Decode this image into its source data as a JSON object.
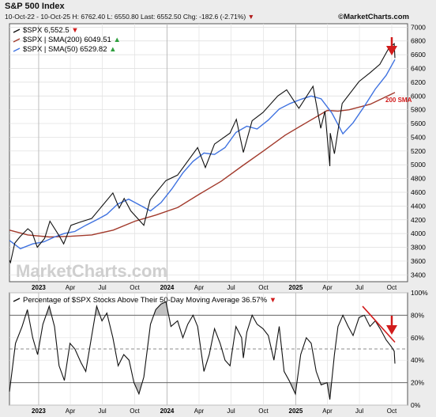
{
  "header": {
    "title": "S&P 500 Index",
    "info": "10-Oct-22 - 10-Oct-25 H: 6762.40 L: 6550.80 Last: 6552.50 Chg: -182.6 (-2.71%)",
    "down_marker": "▼",
    "brand": "©MarketCharts.com"
  },
  "watermark": "MarketCharts.com",
  "colors": {
    "price": "#111111",
    "sma200": "#a23a2c",
    "sma50": "#3f72e0",
    "down_red": "#d11b1b",
    "up_green": "#2e9e3e",
    "breadth_fill": "#a8a8a8"
  },
  "chart_data": [
    {
      "type": "line",
      "legend": [
        {
          "text": "$SPX 6,552.5",
          "marker": "▼",
          "marker_color": "#d11b1b"
        },
        {
          "text": "$SPX | SMA(200) 6049.51",
          "marker": "▲",
          "marker_color": "#2e9e3e"
        },
        {
          "text": "$SPX | SMA(50) 6529.82",
          "marker": "▲",
          "marker_color": "#2e9e3e"
        }
      ],
      "annotation": "200 SMA",
      "x_ticks": [
        "2023",
        "Apr",
        "Jul",
        "Oct",
        "2024",
        "Apr",
        "Jul",
        "Oct",
        "2025",
        "Apr",
        "Jul",
        "Oct"
      ],
      "y_ticks": [
        3400,
        3600,
        3800,
        4000,
        4200,
        4400,
        4600,
        4800,
        5000,
        5200,
        5400,
        5600,
        5800,
        6000,
        6200,
        6400,
        6600,
        6800,
        7000
      ],
      "ylim": [
        3300,
        7050
      ],
      "grid": true,
      "legend_position": "top-left",
      "series": [
        {
          "name": "$SPX",
          "x": [
            "2022-10-10",
            "2022-10-13",
            "2022-10-25",
            "2022-11-10",
            "2022-12-01",
            "2022-12-13",
            "2022-12-28",
            "2023-01-18",
            "2023-02-02",
            "2023-02-28",
            "2023-03-13",
            "2023-04-03",
            "2023-05-01",
            "2023-06-01",
            "2023-07-31",
            "2023-08-18",
            "2023-09-01",
            "2023-09-20",
            "2023-10-27",
            "2023-11-14",
            "2023-12-29",
            "2024-01-31",
            "2024-03-28",
            "2024-04-19",
            "2024-05-15",
            "2024-06-28",
            "2024-07-16",
            "2024-08-05",
            "2024-08-30",
            "2024-09-30",
            "2024-11-11",
            "2024-12-06",
            "2025-01-10",
            "2025-02-19",
            "2025-03-13",
            "2025-03-25",
            "2025-04-08",
            "2025-04-09",
            "2025-04-21",
            "2025-05-13",
            "2025-06-30",
            "2025-08-01",
            "2025-08-28",
            "2025-09-22",
            "2025-10-08",
            "2025-10-10"
          ],
          "y": [
            3612,
            3580,
            3860,
            3960,
            4070,
            4020,
            3800,
            3930,
            4180,
            3970,
            3850,
            4120,
            4170,
            4220,
            4590,
            4370,
            4510,
            4330,
            4120,
            4490,
            4770,
            4850,
            5250,
            4960,
            5300,
            5460,
            5660,
            5180,
            5640,
            5760,
            6000,
            6090,
            5820,
            6140,
            5530,
            5780,
            4980,
            5460,
            5160,
            5890,
            6210,
            6340,
            6460,
            6690,
            6760,
            6552
          ]
        },
        {
          "name": "SMA(200)",
          "x": [
            "2022-10-10",
            "2022-12-01",
            "2023-02-01",
            "2023-04-03",
            "2023-06-01",
            "2023-08-01",
            "2023-10-02",
            "2023-12-01",
            "2024-02-01",
            "2024-04-01",
            "2024-06-03",
            "2024-08-01",
            "2024-10-01",
            "2024-12-02",
            "2025-02-03",
            "2025-04-01",
            "2025-05-01",
            "2025-06-02",
            "2025-08-01",
            "2025-10-10"
          ],
          "y": [
            4050,
            3980,
            3950,
            3960,
            3980,
            4050,
            4180,
            4270,
            4380,
            4570,
            4760,
            4980,
            5200,
            5430,
            5620,
            5790,
            5780,
            5800,
            5880,
            6050
          ]
        },
        {
          "name": "SMA(50)",
          "x": [
            "2022-10-10",
            "2022-11-10",
            "2022-12-15",
            "2023-01-16",
            "2023-02-15",
            "2023-03-15",
            "2023-04-14",
            "2023-05-15",
            "2023-06-15",
            "2023-07-14",
            "2023-08-14",
            "2023-09-14",
            "2023-10-13",
            "2023-11-15",
            "2023-12-15",
            "2024-01-15",
            "2024-02-15",
            "2024-03-15",
            "2024-04-15",
            "2024-05-15",
            "2024-06-14",
            "2024-07-15",
            "2024-08-15",
            "2024-09-13",
            "2024-10-15",
            "2024-11-15",
            "2024-12-16",
            "2025-01-15",
            "2025-02-14",
            "2025-03-14",
            "2025-04-14",
            "2025-05-15",
            "2025-06-13",
            "2025-07-15",
            "2025-08-15",
            "2025-09-15",
            "2025-10-10"
          ],
          "y": [
            3900,
            3780,
            3850,
            3880,
            3950,
            4000,
            4030,
            4120,
            4200,
            4280,
            4430,
            4500,
            4420,
            4330,
            4450,
            4650,
            4880,
            5050,
            5170,
            5150,
            5250,
            5470,
            5560,
            5520,
            5650,
            5810,
            5890,
            5950,
            6000,
            5960,
            5750,
            5450,
            5610,
            5850,
            6100,
            6300,
            6530
          ]
        }
      ]
    },
    {
      "type": "line",
      "title": "Percentage of $SPX Stocks Above Their 50-Day Moving Average 36.57%",
      "title_marker": "▼",
      "x_ticks": [
        "2023",
        "Apr",
        "Jul",
        "Oct",
        "2024",
        "Apr",
        "Jul",
        "Oct",
        "2025",
        "Apr",
        "Jul",
        "Oct"
      ],
      "y_ticks": [
        "0%",
        "20%",
        "40%",
        "60%",
        "80%",
        "100%"
      ],
      "ylim": [
        0,
        100
      ],
      "reference_lines": [
        20,
        50,
        80
      ],
      "grid": true,
      "series": [
        {
          "name": "% Above 50-Day MA",
          "x": [
            "2022-10-10",
            "2022-10-27",
            "2022-11-15",
            "2022-11-30",
            "2022-12-15",
            "2022-12-29",
            "2023-01-13",
            "2023-01-31",
            "2023-02-15",
            "2023-02-28",
            "2023-03-15",
            "2023-03-31",
            "2023-04-14",
            "2023-05-01",
            "2023-05-15",
            "2023-05-31",
            "2023-06-15",
            "2023-06-30",
            "2023-07-14",
            "2023-07-31",
            "2023-08-15",
            "2023-08-31",
            "2023-09-15",
            "2023-09-29",
            "2023-10-13",
            "2023-10-27",
            "2023-11-15",
            "2023-11-30",
            "2023-12-15",
            "2023-12-29",
            "2024-01-12",
            "2024-01-31",
            "2024-02-15",
            "2024-02-29",
            "2024-03-15",
            "2024-03-28",
            "2024-04-15",
            "2024-04-30",
            "2024-05-15",
            "2024-05-31",
            "2024-06-14",
            "2024-06-28",
            "2024-07-15",
            "2024-07-31",
            "2024-08-05",
            "2024-08-15",
            "2024-08-30",
            "2024-09-13",
            "2024-09-30",
            "2024-10-15",
            "2024-10-31",
            "2024-11-15",
            "2024-11-29",
            "2024-12-13",
            "2024-12-31",
            "2025-01-15",
            "2025-01-31",
            "2025-02-14",
            "2025-02-28",
            "2025-03-14",
            "2025-03-31",
            "2025-04-08",
            "2025-04-21",
            "2025-05-01",
            "2025-05-15",
            "2025-05-30",
            "2025-06-13",
            "2025-06-30",
            "2025-07-15",
            "2025-07-31",
            "2025-08-15",
            "2025-08-29",
            "2025-09-15",
            "2025-09-30",
            "2025-10-08",
            "2025-10-10"
          ],
          "y": [
            12,
            55,
            70,
            85,
            60,
            45,
            72,
            88,
            70,
            35,
            22,
            55,
            50,
            38,
            30,
            60,
            88,
            75,
            82,
            60,
            35,
            45,
            40,
            20,
            10,
            25,
            72,
            85,
            90,
            92,
            70,
            75,
            60,
            72,
            80,
            70,
            30,
            45,
            68,
            55,
            40,
            35,
            70,
            60,
            42,
            65,
            80,
            72,
            68,
            62,
            40,
            70,
            30,
            22,
            10,
            45,
            60,
            55,
            30,
            18,
            20,
            5,
            45,
            70,
            80,
            70,
            62,
            78,
            80,
            70,
            75,
            68,
            58,
            52,
            48,
            37
          ]
        }
      ]
    }
  ]
}
